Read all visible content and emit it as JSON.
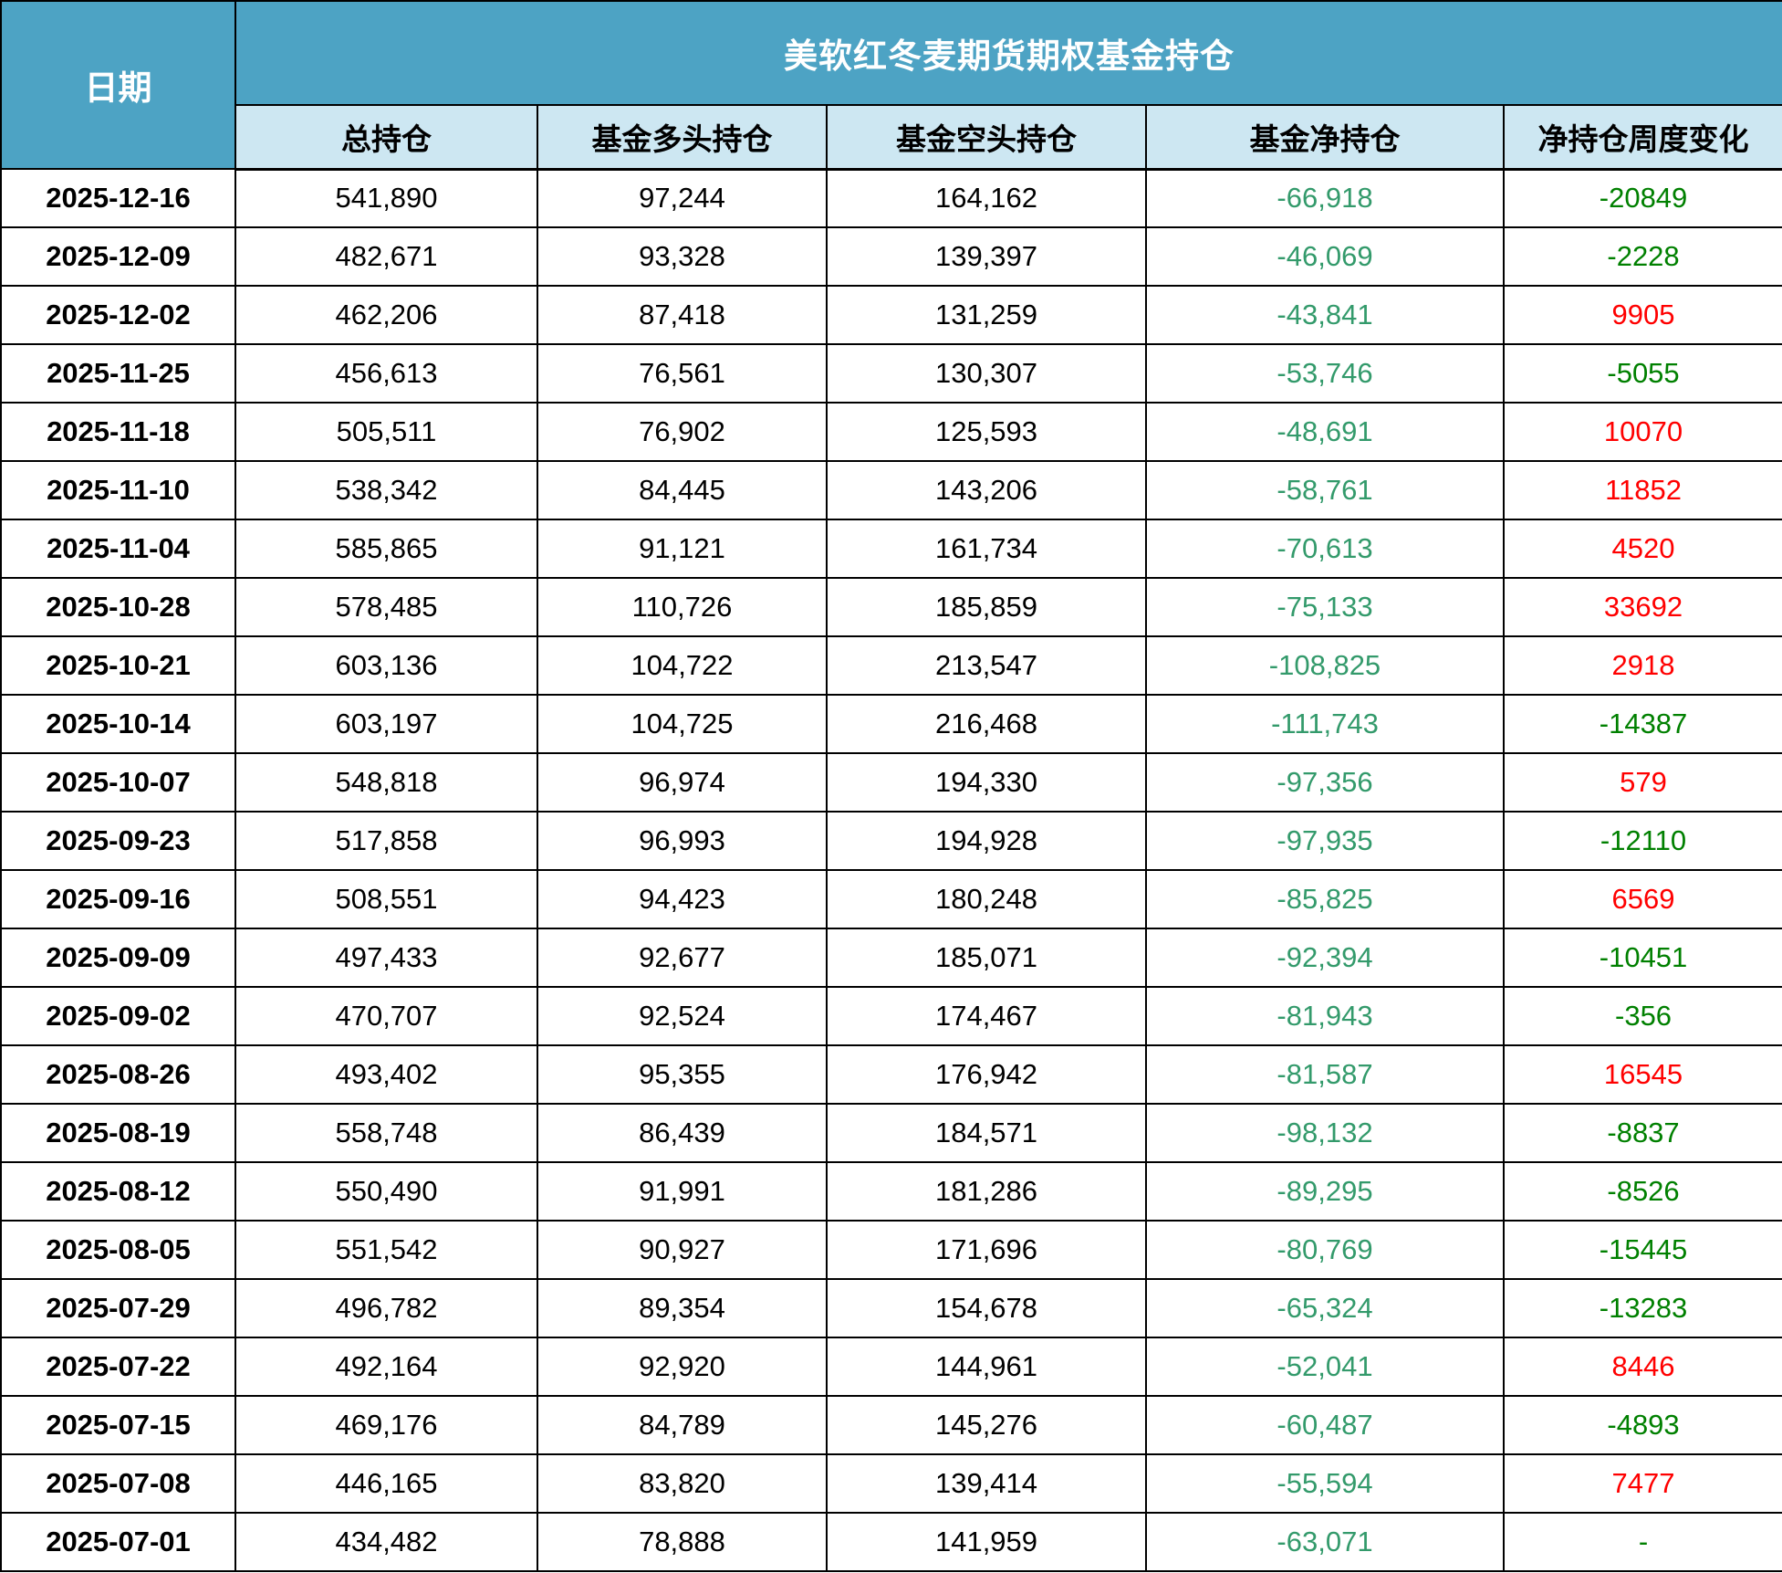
{
  "header": {
    "date_label": "日期",
    "title": "美软红冬麦期货期权基金持仓",
    "columns": [
      "总持仓",
      "基金多头持仓",
      "基金空头持仓",
      "基金净持仓",
      "净持仓周度变化"
    ]
  },
  "colors": {
    "header_bg": "#4DA3C4",
    "subheader_bg": "#CDE7F2",
    "border": "#000000",
    "net_text": "#339A6B",
    "change_positive": "#FF0000",
    "change_negative": "#008000"
  },
  "chart_data": {
    "type": "table",
    "title": "美软红冬麦期货期权基金持仓",
    "columns": [
      "日期",
      "总持仓",
      "基金多头持仓",
      "基金空头持仓",
      "基金净持仓",
      "净持仓周度变化"
    ],
    "rows": [
      [
        "2025-12-16",
        541890,
        97244,
        164162,
        -66918,
        -20849
      ],
      [
        "2025-12-09",
        482671,
        93328,
        139397,
        -46069,
        -2228
      ],
      [
        "2025-12-02",
        462206,
        87418,
        131259,
        -43841,
        9905
      ],
      [
        "2025-11-25",
        456613,
        76561,
        130307,
        -53746,
        -5055
      ],
      [
        "2025-11-18",
        505511,
        76902,
        125593,
        -48691,
        10070
      ],
      [
        "2025-11-10",
        538342,
        84445,
        143206,
        -58761,
        11852
      ],
      [
        "2025-11-04",
        585865,
        91121,
        161734,
        -70613,
        4520
      ],
      [
        "2025-10-28",
        578485,
        110726,
        185859,
        -75133,
        33692
      ],
      [
        "2025-10-21",
        603136,
        104722,
        213547,
        -108825,
        2918
      ],
      [
        "2025-10-14",
        603197,
        104725,
        216468,
        -111743,
        -14387
      ],
      [
        "2025-10-07",
        548818,
        96974,
        194330,
        -97356,
        579
      ],
      [
        "2025-09-23",
        517858,
        96993,
        194928,
        -97935,
        -12110
      ],
      [
        "2025-09-16",
        508551,
        94423,
        180248,
        -85825,
        6569
      ],
      [
        "2025-09-09",
        497433,
        92677,
        185071,
        -92394,
        -10451
      ],
      [
        "2025-09-02",
        470707,
        92524,
        174467,
        -81943,
        -356
      ],
      [
        "2025-08-26",
        493402,
        95355,
        176942,
        -81587,
        16545
      ],
      [
        "2025-08-19",
        558748,
        86439,
        184571,
        -98132,
        -8837
      ],
      [
        "2025-08-12",
        550490,
        91991,
        181286,
        -89295,
        -8526
      ],
      [
        "2025-08-05",
        551542,
        90927,
        171696,
        -80769,
        -15445
      ],
      [
        "2025-07-29",
        496782,
        89354,
        154678,
        -65324,
        -13283
      ],
      [
        "2025-07-22",
        492164,
        92920,
        144961,
        -52041,
        8446
      ],
      [
        "2025-07-15",
        469176,
        84789,
        145276,
        -60487,
        -4893
      ],
      [
        "2025-07-08",
        446165,
        83820,
        139414,
        -55594,
        7477
      ],
      [
        "2025-07-01",
        434482,
        78888,
        141959,
        -63071,
        null
      ]
    ]
  }
}
